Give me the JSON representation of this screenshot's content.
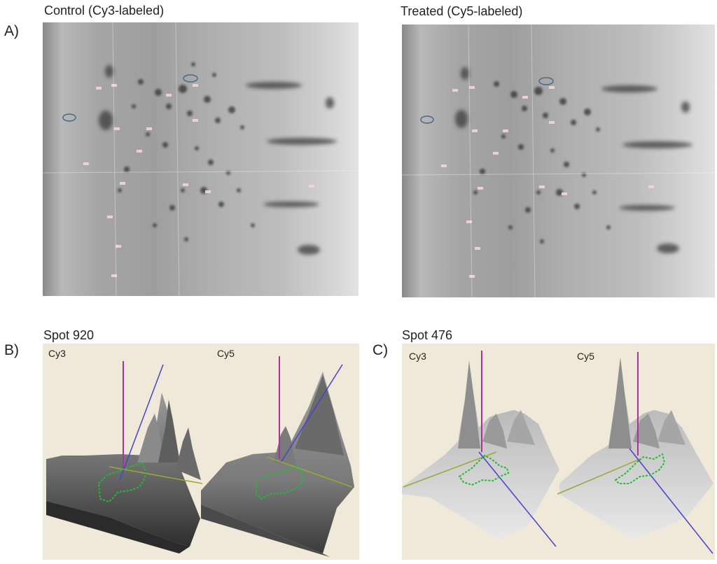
{
  "panels": {
    "a": {
      "letter": "A)",
      "left_title": "Control (Cy3-labeled)",
      "right_title": "Treated (Cy5-labeled)"
    },
    "b": {
      "letter": "B)",
      "title": "Spot 920",
      "left_channel": "Cy3",
      "right_channel": "Cy5"
    },
    "c": {
      "letter": "C)",
      "title": "Spot 476",
      "left_channel": "Cy3",
      "right_channel": "Cy5"
    }
  },
  "colors": {
    "surface_bg": "#f0e8d8",
    "spot_outline": "#22bb33",
    "marker_vertical": "#aa3399",
    "marker_diag": "#4444cc",
    "marker_horizontal": "#99aa33",
    "spot_annotation": "#66aacc"
  }
}
